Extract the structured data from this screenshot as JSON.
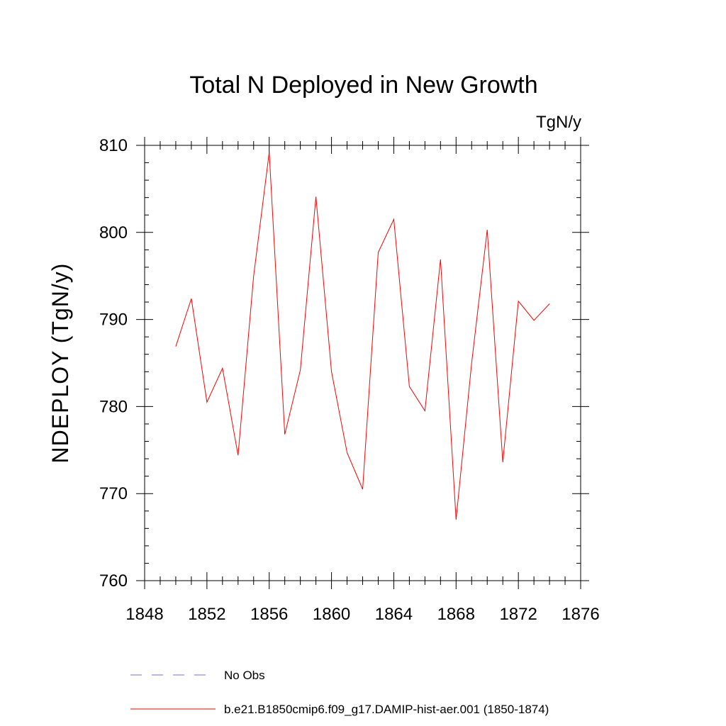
{
  "chart_data": {
    "type": "line",
    "title": "Total N Deployed in New Growth",
    "units_label": "TgN/y",
    "ylabel": "NDEPLOY  (TgN/y)",
    "xlabel": "",
    "xlim": [
      1848,
      1876
    ],
    "ylim": [
      760,
      810
    ],
    "x_ticks": [
      1848,
      1852,
      1856,
      1860,
      1864,
      1868,
      1872,
      1876
    ],
    "y_ticks": [
      760,
      770,
      780,
      790,
      800,
      810
    ],
    "grid": false,
    "series": [
      {
        "name": "b.e21.B1850cmip6.f09_g17.DAMIP-hist-aer.001 (1850-1874)",
        "color": "#ff0000",
        "style": "solid",
        "x": [
          1850,
          1851,
          1852,
          1853,
          1854,
          1855,
          1856,
          1857,
          1858,
          1859,
          1860,
          1861,
          1862,
          1863,
          1864,
          1865,
          1866,
          1867,
          1868,
          1869,
          1870,
          1871,
          1872,
          1873,
          1874
        ],
        "values": [
          786.9,
          792.4,
          780.5,
          784.4,
          774.4,
          795.0,
          809.2,
          776.8,
          784.2,
          804.1,
          784.0,
          774.7,
          770.5,
          797.7,
          801.5,
          782.3,
          779.5,
          796.9,
          767.0,
          785.0,
          800.3,
          773.6,
          792.1,
          789.9,
          791.8
        ]
      },
      {
        "name": "No Obs",
        "color": "#7b68ee",
        "style": "dashed",
        "x": [],
        "values": []
      }
    ],
    "legend_placement": "bottom"
  }
}
